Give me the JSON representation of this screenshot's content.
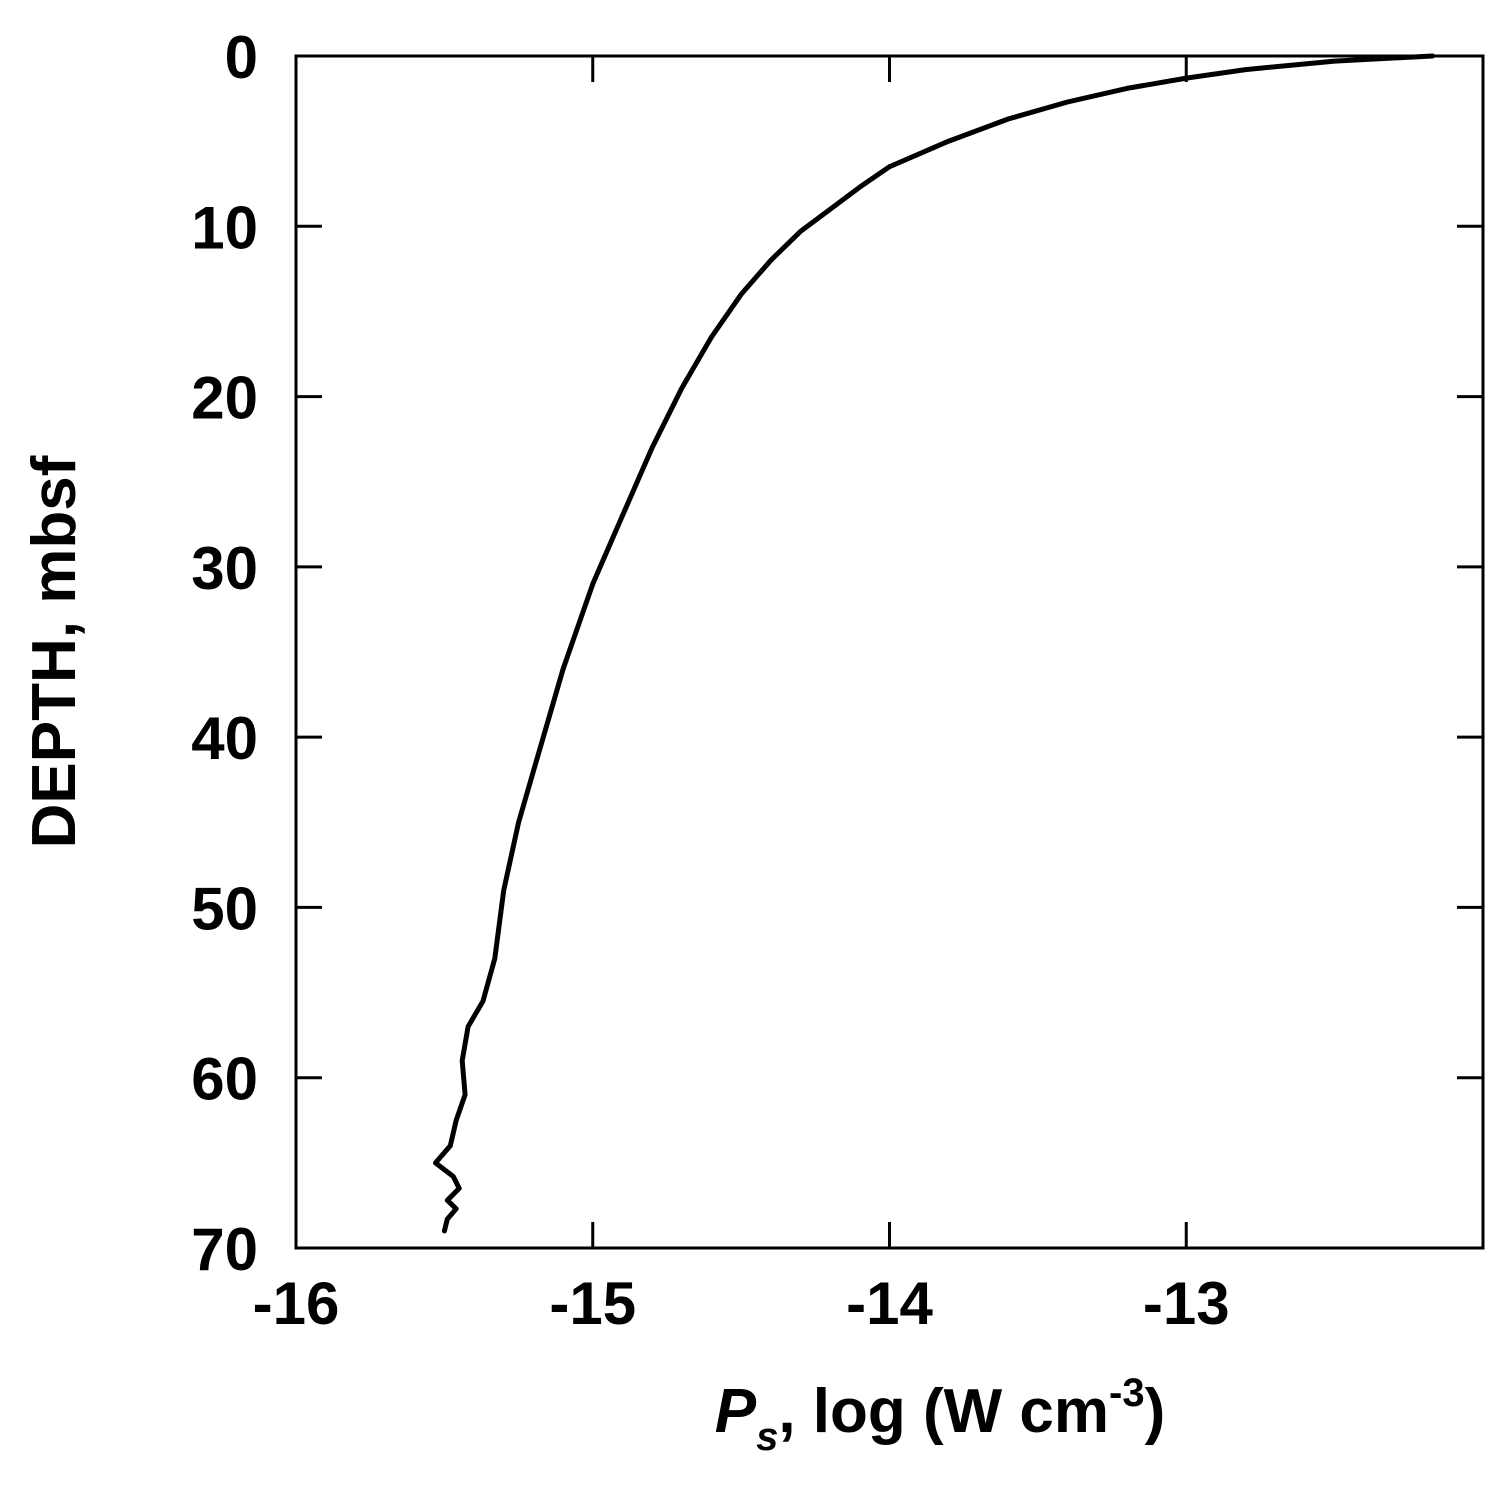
{
  "chart_data": {
    "type": "line",
    "xlabel": {
      "main": "P",
      "subscript": "s",
      "rest": ", log (W cm",
      "superscript": "-3",
      "close": ")"
    },
    "ylabel": "DEPTH, mbsf",
    "xlim": [
      -16,
      -12
    ],
    "ylim": [
      0,
      70
    ],
    "y_inverted": true,
    "xticks": [
      -16,
      -15,
      -14,
      -13
    ],
    "xtick_labels": [
      "-16",
      "-15",
      "-14",
      "-13"
    ],
    "yticks": [
      0,
      10,
      20,
      30,
      40,
      50,
      60,
      70
    ],
    "ytick_labels": [
      "0",
      "10",
      "20",
      "30",
      "40",
      "50",
      "60",
      "70"
    ],
    "grid": false,
    "series": [
      {
        "color": "#000000",
        "points": [
          {
            "x": -12.17,
            "y": 0.0
          },
          {
            "x": -12.5,
            "y": 0.3
          },
          {
            "x": -12.8,
            "y": 0.8
          },
          {
            "x": -13.0,
            "y": 1.3
          },
          {
            "x": -13.2,
            "y": 1.9
          },
          {
            "x": -13.4,
            "y": 2.7
          },
          {
            "x": -13.6,
            "y": 3.7
          },
          {
            "x": -13.8,
            "y": 5.0
          },
          {
            "x": -14.0,
            "y": 6.5
          },
          {
            "x": -14.1,
            "y": 7.7
          },
          {
            "x": -14.2,
            "y": 9.0
          },
          {
            "x": -14.3,
            "y": 10.3
          },
          {
            "x": -14.4,
            "y": 12.0
          },
          {
            "x": -14.5,
            "y": 14.0
          },
          {
            "x": -14.6,
            "y": 16.5
          },
          {
            "x": -14.7,
            "y": 19.5
          },
          {
            "x": -14.8,
            "y": 23.0
          },
          {
            "x": -14.9,
            "y": 27.0
          },
          {
            "x": -15.0,
            "y": 31.0
          },
          {
            "x": -15.1,
            "y": 36.0
          },
          {
            "x": -15.2,
            "y": 42.0
          },
          {
            "x": -15.25,
            "y": 45.0
          },
          {
            "x": -15.3,
            "y": 49.0
          },
          {
            "x": -15.33,
            "y": 53.0
          },
          {
            "x": -15.37,
            "y": 55.5
          },
          {
            "x": -15.42,
            "y": 57.0
          },
          {
            "x": -15.44,
            "y": 59.0
          },
          {
            "x": -15.43,
            "y": 61.0
          },
          {
            "x": -15.46,
            "y": 62.5
          },
          {
            "x": -15.48,
            "y": 64.0
          },
          {
            "x": -15.53,
            "y": 65.0
          },
          {
            "x": -15.47,
            "y": 65.8
          },
          {
            "x": -15.45,
            "y": 66.5
          },
          {
            "x": -15.49,
            "y": 67.2
          },
          {
            "x": -15.46,
            "y": 67.7
          },
          {
            "x": -15.49,
            "y": 68.3
          },
          {
            "x": -15.5,
            "y": 69.0
          }
        ]
      }
    ]
  }
}
